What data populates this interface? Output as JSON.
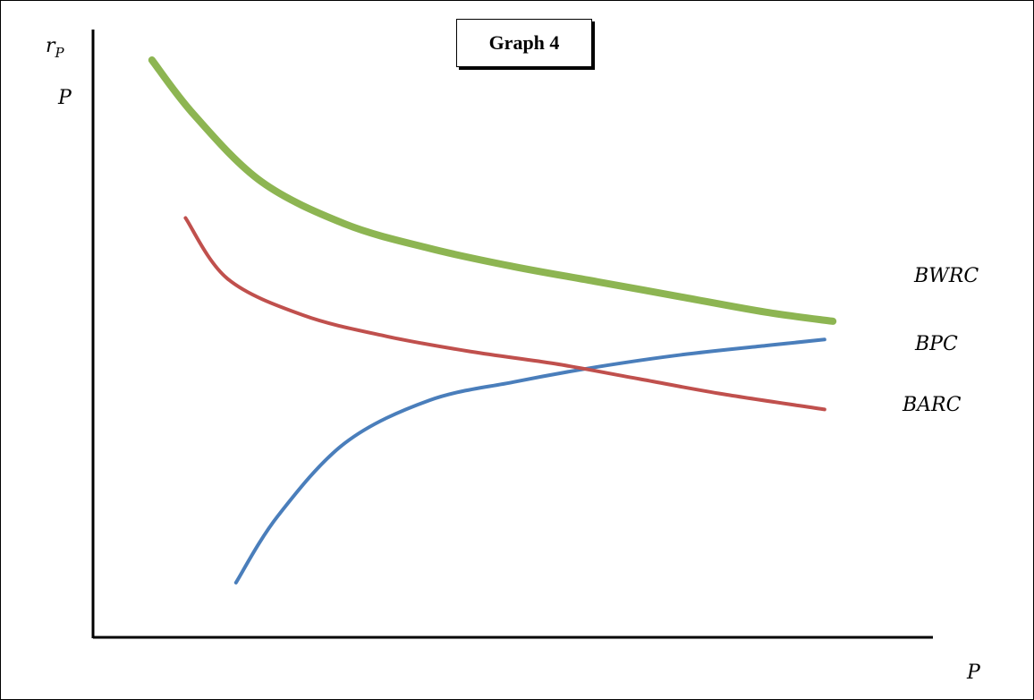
{
  "chart_data": {
    "type": "line",
    "title": "Graph 4",
    "y_axis_labels": [
      "r",
      "P"
    ],
    "y_axis_subscript": "P",
    "xlabel": "P",
    "xlim": [
      0,
      10
    ],
    "ylim": [
      0,
      10
    ],
    "grid": false,
    "series": [
      {
        "name": "BWRC",
        "color": "#8db552",
        "points": [
          [
            0.7,
            9.5
          ],
          [
            1.2,
            8.6
          ],
          [
            2,
            7.5
          ],
          [
            3,
            6.8
          ],
          [
            4,
            6.4
          ],
          [
            5,
            6.1
          ],
          [
            6,
            5.85
          ],
          [
            7,
            5.6
          ],
          [
            8,
            5.35
          ],
          [
            8.8,
            5.2
          ]
        ]
      },
      {
        "name": "BPC",
        "color": "#4a7ebb",
        "points": [
          [
            1.7,
            0.9
          ],
          [
            2.2,
            2.0
          ],
          [
            3,
            3.2
          ],
          [
            4,
            3.9
          ],
          [
            5,
            4.2
          ],
          [
            6,
            4.45
          ],
          [
            7,
            4.65
          ],
          [
            8,
            4.8
          ],
          [
            8.7,
            4.9
          ]
        ]
      },
      {
        "name": "BARC",
        "color": "#c0504d",
        "points": [
          [
            1.1,
            6.9
          ],
          [
            1.6,
            5.9
          ],
          [
            2.5,
            5.3
          ],
          [
            3.5,
            4.95
          ],
          [
            4.5,
            4.7
          ],
          [
            5.5,
            4.5
          ],
          [
            6.5,
            4.25
          ],
          [
            7.5,
            4.0
          ],
          [
            8.7,
            3.75
          ]
        ]
      }
    ]
  }
}
